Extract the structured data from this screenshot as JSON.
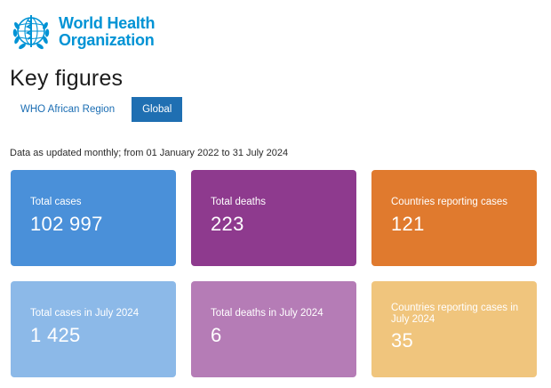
{
  "logo": {
    "line1": "World Health",
    "line2": "Organization"
  },
  "page_title": "Key figures",
  "tabs": [
    {
      "label": "WHO African Region",
      "active": false
    },
    {
      "label": "Global",
      "active": true
    }
  ],
  "data_note": "Data as updated monthly; from 01 January 2022 to 31 July 2024",
  "cards": [
    {
      "label": "Total cases",
      "value": "102 997",
      "color": "#4a90d9"
    },
    {
      "label": "Total deaths",
      "value": "223",
      "color": "#8e3a8e"
    },
    {
      "label": "Countries reporting cases",
      "value": "121",
      "color": "#e07a2e"
    },
    {
      "label": "Total cases in July 2024",
      "value": "1 425",
      "color": "#8cb9e8"
    },
    {
      "label": "Total deaths in July 2024",
      "value": "6",
      "color": "#b57cb6"
    },
    {
      "label": "Countries reporting cases in July 2024",
      "value": "35",
      "color": "#f0c57d"
    }
  ],
  "colors": {
    "brand": "#0093d5",
    "tab_active_bg": "#1f6fb2",
    "tab_inactive_text": "#1a6db3"
  }
}
